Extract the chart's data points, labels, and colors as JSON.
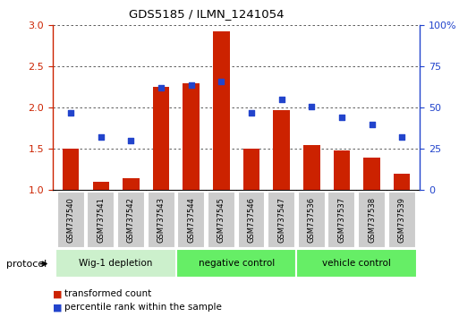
{
  "title": "GDS5185 / ILMN_1241054",
  "samples": [
    "GSM737540",
    "GSM737541",
    "GSM737542",
    "GSM737543",
    "GSM737544",
    "GSM737545",
    "GSM737546",
    "GSM737547",
    "GSM737536",
    "GSM737537",
    "GSM737538",
    "GSM737539"
  ],
  "bar_values": [
    1.5,
    1.1,
    1.15,
    2.25,
    2.3,
    2.93,
    1.5,
    1.97,
    1.55,
    1.48,
    1.4,
    1.2
  ],
  "percentile_values": [
    47,
    32,
    30,
    62,
    64,
    66,
    47,
    55,
    51,
    44,
    40,
    32
  ],
  "bar_color": "#cc2200",
  "dot_color": "#2244cc",
  "ylim_left": [
    1.0,
    3.0
  ],
  "ylim_right": [
    0,
    100
  ],
  "yticks_left": [
    1.0,
    1.5,
    2.0,
    2.5,
    3.0
  ],
  "yticks_right": [
    0,
    25,
    50,
    75,
    100
  ],
  "ytick_labels_right": [
    "0",
    "25",
    "50",
    "75",
    "100%"
  ],
  "groups": [
    {
      "label": "Wig-1 depletion",
      "indices": [
        0,
        1,
        2,
        3
      ],
      "color": "#ccf0cc"
    },
    {
      "label": "negative control",
      "indices": [
        4,
        5,
        6,
        7
      ],
      "color": "#66ee66"
    },
    {
      "label": "vehicle control",
      "indices": [
        8,
        9,
        10,
        11
      ],
      "color": "#66ee66"
    }
  ],
  "protocol_label": "protocol",
  "legend_red": "transformed count",
  "legend_blue": "percentile rank within the sample",
  "bar_width": 0.55,
  "background_color": "#ffffff",
  "grid_color": "#444444",
  "tick_color_left": "#cc2200",
  "tick_color_right": "#2244cc",
  "label_box_color": "#cccccc",
  "label_box_edge": "#ffffff"
}
